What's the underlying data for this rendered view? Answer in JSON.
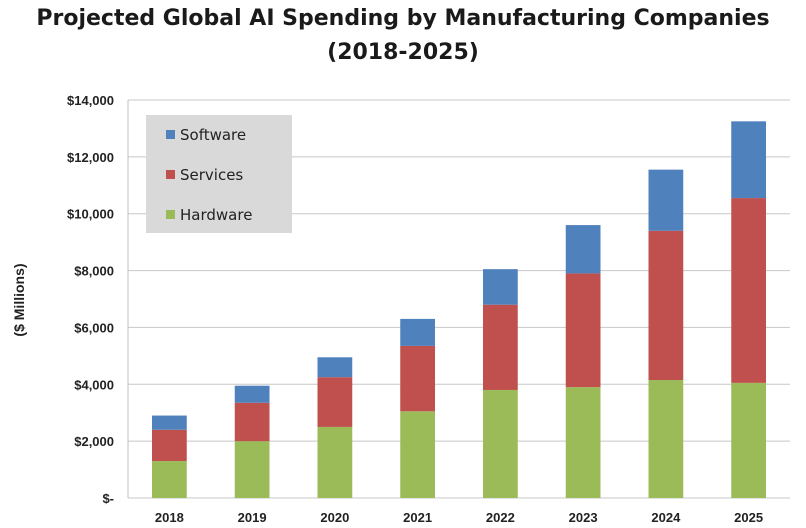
{
  "chart_data": {
    "type": "bar",
    "stacked": true,
    "title": "Projected Global AI Spending by Manufacturing Companies",
    "subtitle": "(2018-2025)",
    "xlabel": "",
    "ylabel": "($ Millions)",
    "categories": [
      "2018",
      "2019",
      "2020",
      "2021",
      "2022",
      "2023",
      "2024",
      "2025"
    ],
    "series": [
      {
        "name": "Hardware",
        "color": "#9bbb59",
        "values": [
          1300,
          2000,
          2500,
          3050,
          3800,
          3900,
          4150,
          4050
        ]
      },
      {
        "name": "Services",
        "color": "#c0504d",
        "values": [
          1100,
          1350,
          1750,
          2300,
          3000,
          4000,
          5250,
          6500
        ]
      },
      {
        "name": "Software",
        "color": "#4f81bd",
        "values": [
          500,
          600,
          700,
          950,
          1250,
          1700,
          2150,
          2700
        ]
      }
    ],
    "ylim": [
      0,
      14000
    ],
    "yticks": [
      0,
      2000,
      4000,
      6000,
      8000,
      10000,
      12000,
      14000
    ],
    "ytick_labels": [
      "$-",
      "$2,000",
      "$4,000",
      "$6,000",
      "$8,000",
      "$10,000",
      "$12,000",
      "$14,000"
    ],
    "legend": {
      "placement": "top-left",
      "entries": [
        "Software",
        "Services",
        "Hardware"
      ],
      "background": "#d9d9d9"
    },
    "grid": true
  }
}
